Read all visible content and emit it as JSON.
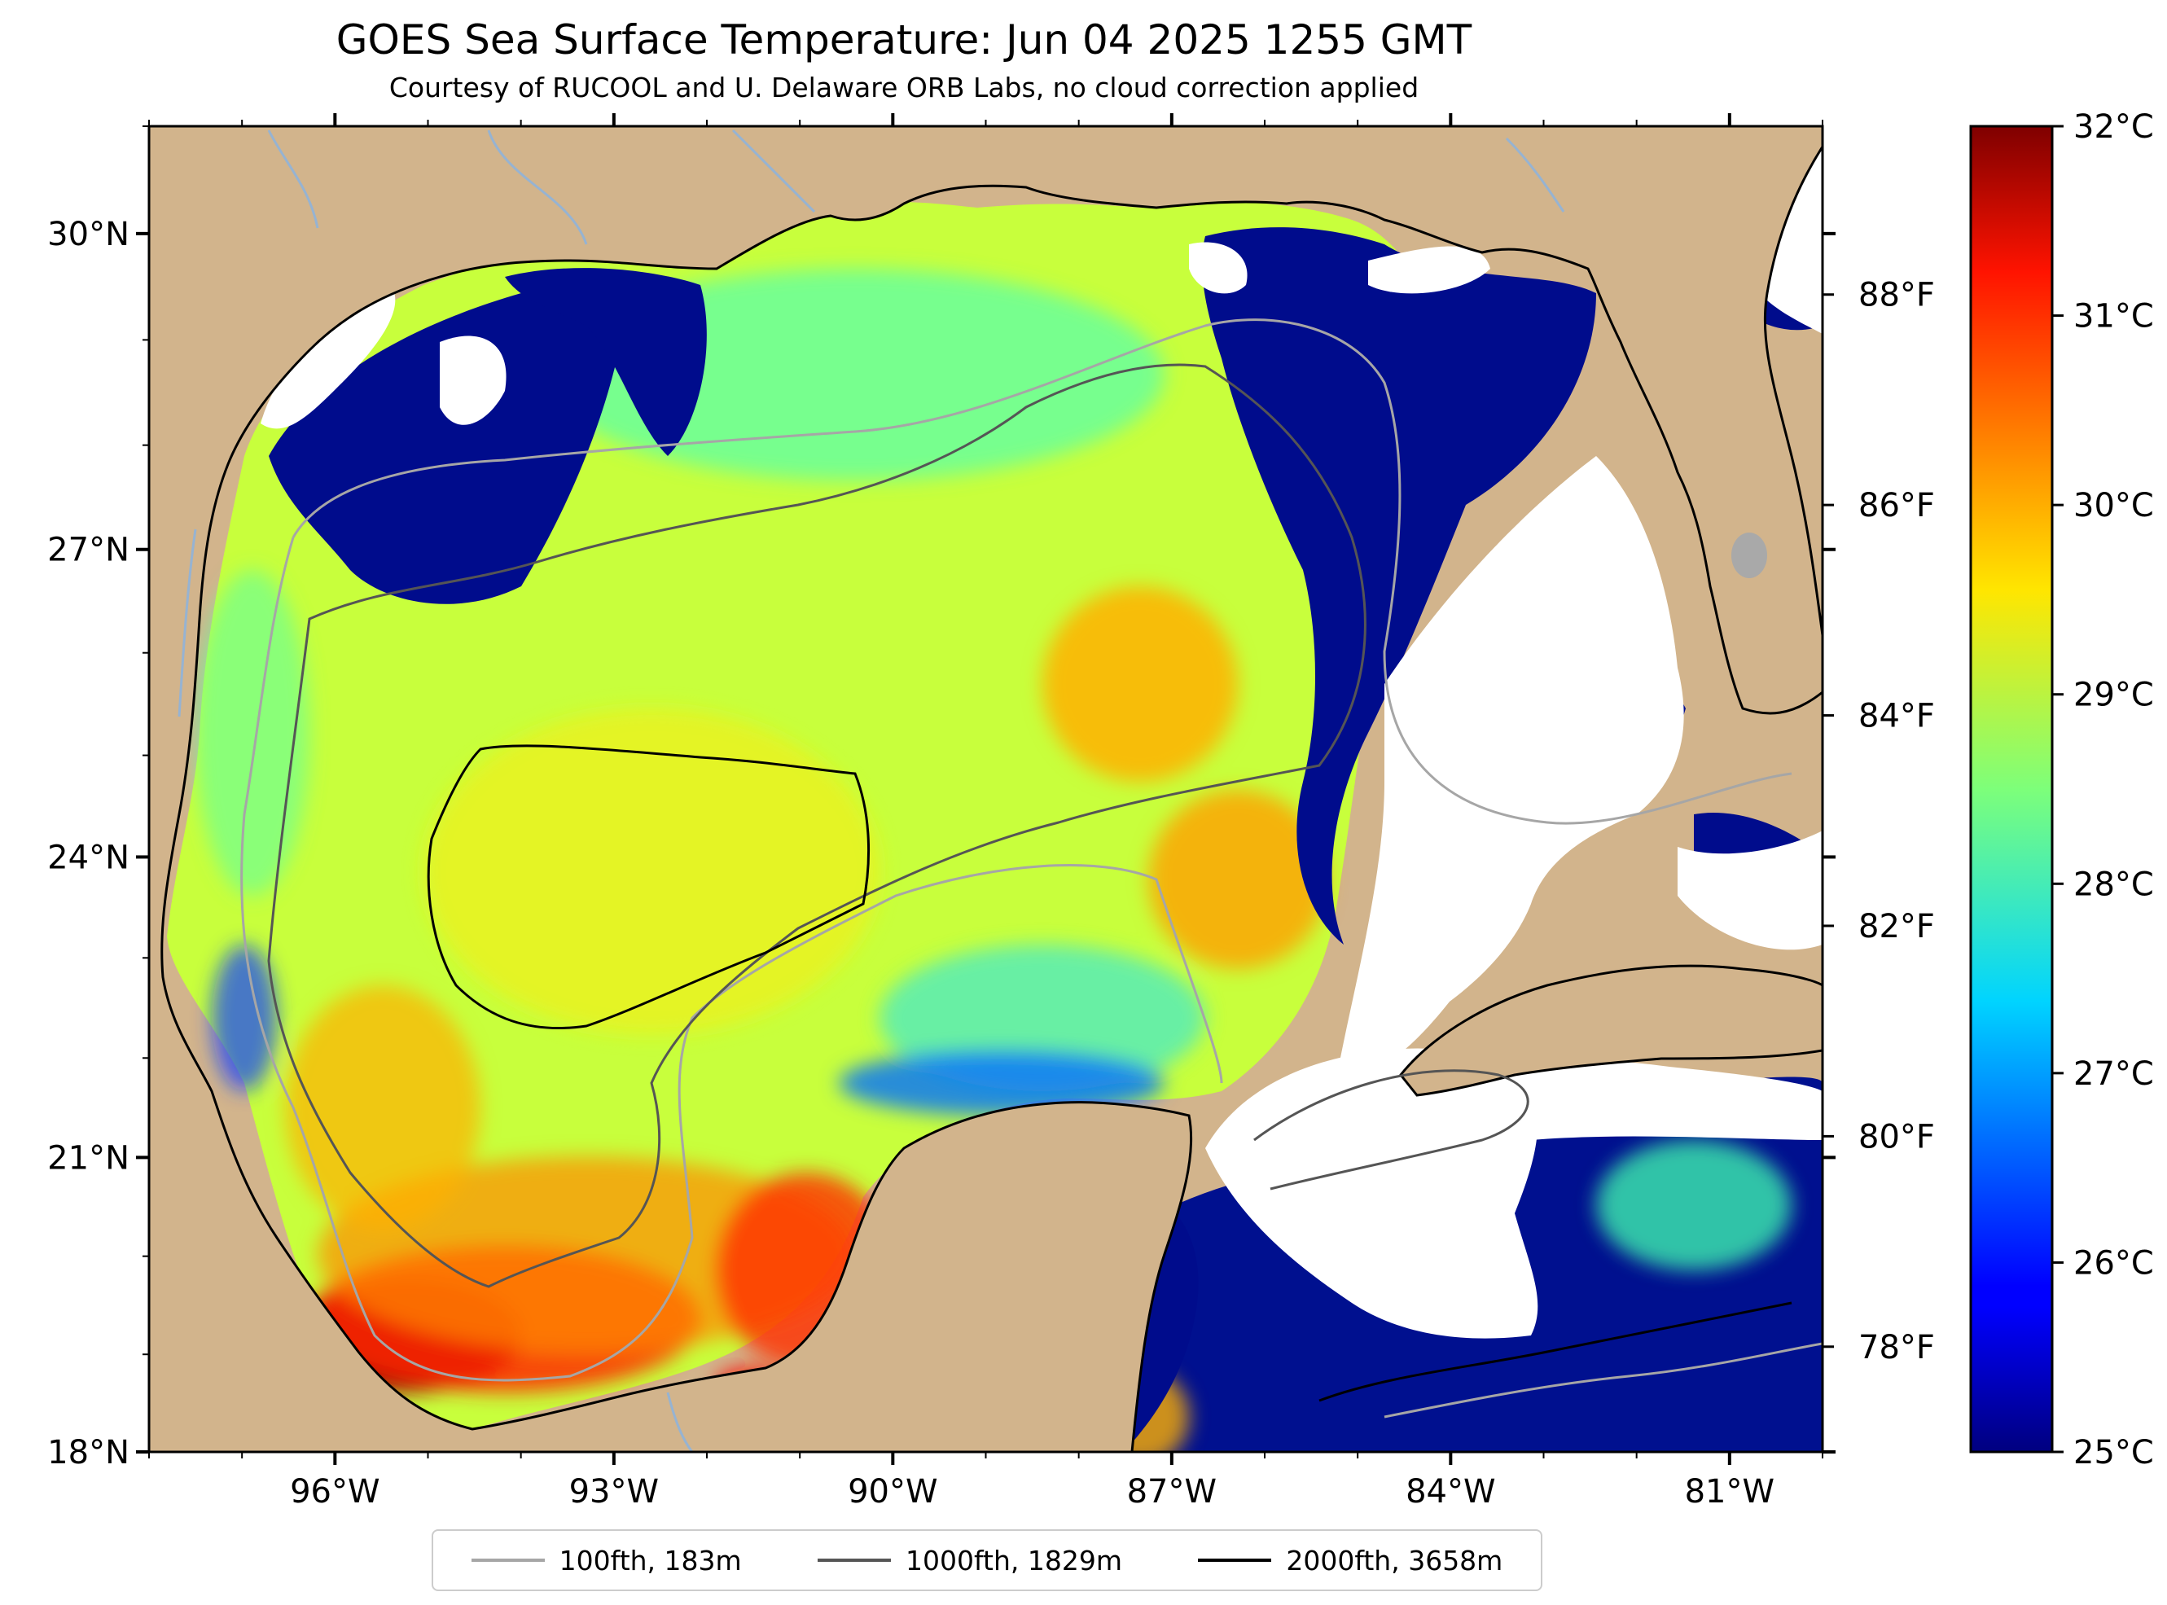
{
  "title": "GOES Sea Surface Temperature: Jun 04 2025 1255 GMT",
  "subtitle": "Courtesy of RUCOOL and U. Delaware ORB Labs, no cloud correction applied",
  "map": {
    "region": "Gulf of Mexico",
    "lon_range": [
      -98,
      -80
    ],
    "lat_range": [
      18,
      31
    ],
    "lon_ticks": [
      "96°W",
      "93°W",
      "90°W",
      "87°W",
      "84°W",
      "81°W"
    ],
    "lat_ticks": [
      "30°N",
      "27°N",
      "24°N",
      "21°N",
      "18°N"
    ],
    "colors": {
      "land": "#d2b48c",
      "no_data": "#ffffff",
      "river": "#8fb3d9",
      "lake": "#a9a9a9"
    }
  },
  "colorbar": {
    "min_c": 25,
    "max_c": 32,
    "colormap": "jet",
    "celsius_ticks": [
      "32°C",
      "31°C",
      "30°C",
      "29°C",
      "28°C",
      "27°C",
      "26°C",
      "25°C"
    ],
    "fahrenheit_ticks": [
      "88°F",
      "86°F",
      "84°F",
      "82°F",
      "80°F",
      "78°F"
    ]
  },
  "legend": {
    "placement": "bottom-center",
    "items": [
      {
        "label": "100fth, 183m",
        "color": "#a6a6a6"
      },
      {
        "label": "1000fth, 1829m",
        "color": "#555555"
      },
      {
        "label": "2000fth, 3658m",
        "color": "#000000"
      }
    ]
  }
}
